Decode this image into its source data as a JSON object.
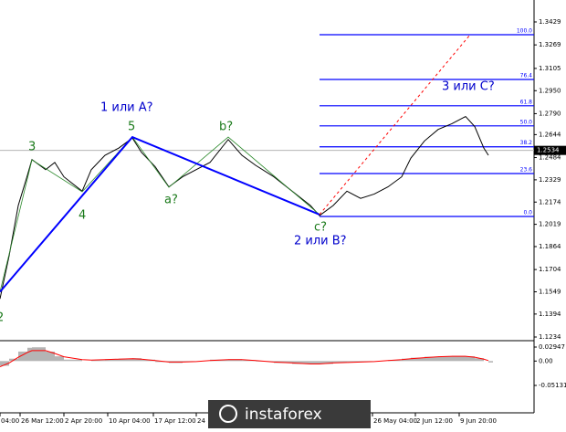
{
  "chart_data": [
    {
      "type": "line",
      "x": [
        0,
        2,
        4,
        6,
        7,
        10,
        12,
        14,
        18,
        20,
        23,
        26,
        29,
        31,
        34,
        37,
        40,
        43,
        46,
        50,
        53,
        56,
        60,
        64,
        68,
        70,
        73,
        76,
        79,
        82,
        85,
        88,
        90,
        93,
        96,
        99,
        102,
        104,
        106,
        107
      ],
      "series": [
        {
          "color": "#000000",
          "values": [
            1.15,
            1.18,
            1.215,
            1.236,
            1.247,
            1.24,
            1.245,
            1.235,
            1.225,
            1.24,
            1.25,
            1.255,
            1.262,
            1.252,
            1.242,
            1.228,
            1.235,
            1.24,
            1.245,
            1.261,
            1.25,
            1.243,
            1.235,
            1.225,
            1.215,
            1.208,
            1.215,
            1.225,
            1.22,
            1.223,
            1.228,
            1.235,
            1.248,
            1.26,
            1.268,
            1.272,
            1.277,
            1.27,
            1.255,
            1.25
          ]
        }
      ],
      "xlim": [
        0,
        117
      ],
      "xticks": [
        {
          "value": 0,
          "label": "04:00"
        },
        {
          "value": 4.4,
          "label": "26 Mar 12:00"
        },
        {
          "value": 14,
          "label": "2 Apr 20:00"
        },
        {
          "value": 23.6,
          "label": "10 Apr 04:00"
        },
        {
          "value": 33.6,
          "label": "17 Apr 12:00"
        },
        {
          "value": 43,
          "label": "24"
        },
        {
          "value": 79,
          "label": "00"
        },
        {
          "value": 81.6,
          "label": "26 May 04:00"
        },
        {
          "value": 91,
          "label": "2 Jun 12:00"
        },
        {
          "value": 100.6,
          "label": "9 Jun 20:00"
        }
      ],
      "ylim": [
        1.1234,
        1.3429
      ],
      "yticks": [
        1.3429,
        1.3269,
        {
          "value": 1.3105,
          "label": "1.3105"
        },
        {
          "value": 1.295,
          "label": "1.2950"
        },
        {
          "value": 1.279,
          "label": "1.2790"
        },
        1.2644,
        1.2484,
        1.2329,
        1.2174,
        1.2019,
        1.1864,
        1.1704,
        1.1549,
        1.1394,
        1.1234
      ],
      "last_price": 1.2534,
      "waves": {
        "color": "#0000ff",
        "x": [
          0,
          29,
          70
        ],
        "values": [
          1.1549,
          1.2627,
          1.2087
        ]
      },
      "subwaves": {
        "color": "#2e8b2e",
        "x": [
          0,
          7,
          18,
          29,
          37,
          50,
          70
        ],
        "values": [
          1.1549,
          1.2468,
          1.2246,
          1.2627,
          1.2277,
          1.2627,
          1.2087
        ]
      },
      "projection": {
        "color": "#ff0000",
        "x": [
          70,
          103
        ],
        "values": [
          1.2087,
          1.334
        ]
      },
      "fib_color": "#0000ff",
      "fib_start": 70,
      "fib_levels": [
        {
          "label": "100.0",
          "value": 1.334
        },
        {
          "label": "76.4",
          "value": 1.3028
        },
        {
          "label": "61.8",
          "value": 1.2845
        },
        {
          "label": "50.0",
          "value": 1.2705
        },
        {
          "label": "38.2",
          "value": 1.2559
        },
        {
          "label": "23.6",
          "value": 1.2373
        },
        {
          "label": "0.0",
          "value": 1.2074
        }
      ],
      "annotations": [
        "1 или A?",
        "5",
        "3",
        "4",
        "a?",
        "b?",
        "c?",
        "2 или B?",
        "3 или C?",
        "2"
      ]
    },
    {
      "type": "macd",
      "x": [
        0,
        2,
        4,
        6,
        7,
        10,
        12,
        14,
        18,
        20,
        23,
        26,
        29,
        31,
        34,
        37,
        40,
        43,
        46,
        50,
        53,
        56,
        60,
        64,
        68,
        70,
        73,
        76,
        79,
        82,
        85,
        88,
        90,
        93,
        96,
        99,
        102,
        104,
        106,
        107
      ],
      "histogram": {
        "color": "#b4b4b4",
        "values": [
          -0.01,
          0.005,
          0.02,
          0.028,
          0.029,
          0.02,
          0.01,
          0.003,
          0.0,
          0.002,
          0.004,
          0.005,
          0.006,
          0.003,
          -0.002,
          -0.004,
          -0.002,
          0.0,
          0.003,
          0.004,
          0.002,
          -0.001,
          -0.004,
          -0.006,
          -0.007,
          -0.006,
          -0.003,
          -0.002,
          -0.002,
          0.0,
          0.002,
          0.005,
          0.007,
          0.009,
          0.01,
          0.011,
          0.01,
          0.006,
          0.0,
          -0.003
        ]
      },
      "signal": {
        "color": "#ff0000",
        "values": [
          -0.012,
          -0.004,
          0.008,
          0.018,
          0.022,
          0.022,
          0.016,
          0.009,
          0.003,
          0.002,
          0.003,
          0.004,
          0.005,
          0.004,
          0.001,
          -0.002,
          -0.002,
          -0.001,
          0.001,
          0.003,
          0.003,
          0.001,
          -0.002,
          -0.004,
          -0.006,
          -0.006,
          -0.004,
          -0.003,
          -0.002,
          -0.001,
          0.001,
          0.003,
          0.005,
          0.007,
          0.009,
          0.01,
          0.01,
          0.008,
          0.004,
          0.001
        ]
      },
      "ylim": [
        -0.05131,
        0.02947
      ],
      "yticks": [
        0.02947,
        {
          "value": 0,
          "label": "0.00"
        },
        -0.05131
      ]
    }
  ],
  "logo": "instaforex"
}
